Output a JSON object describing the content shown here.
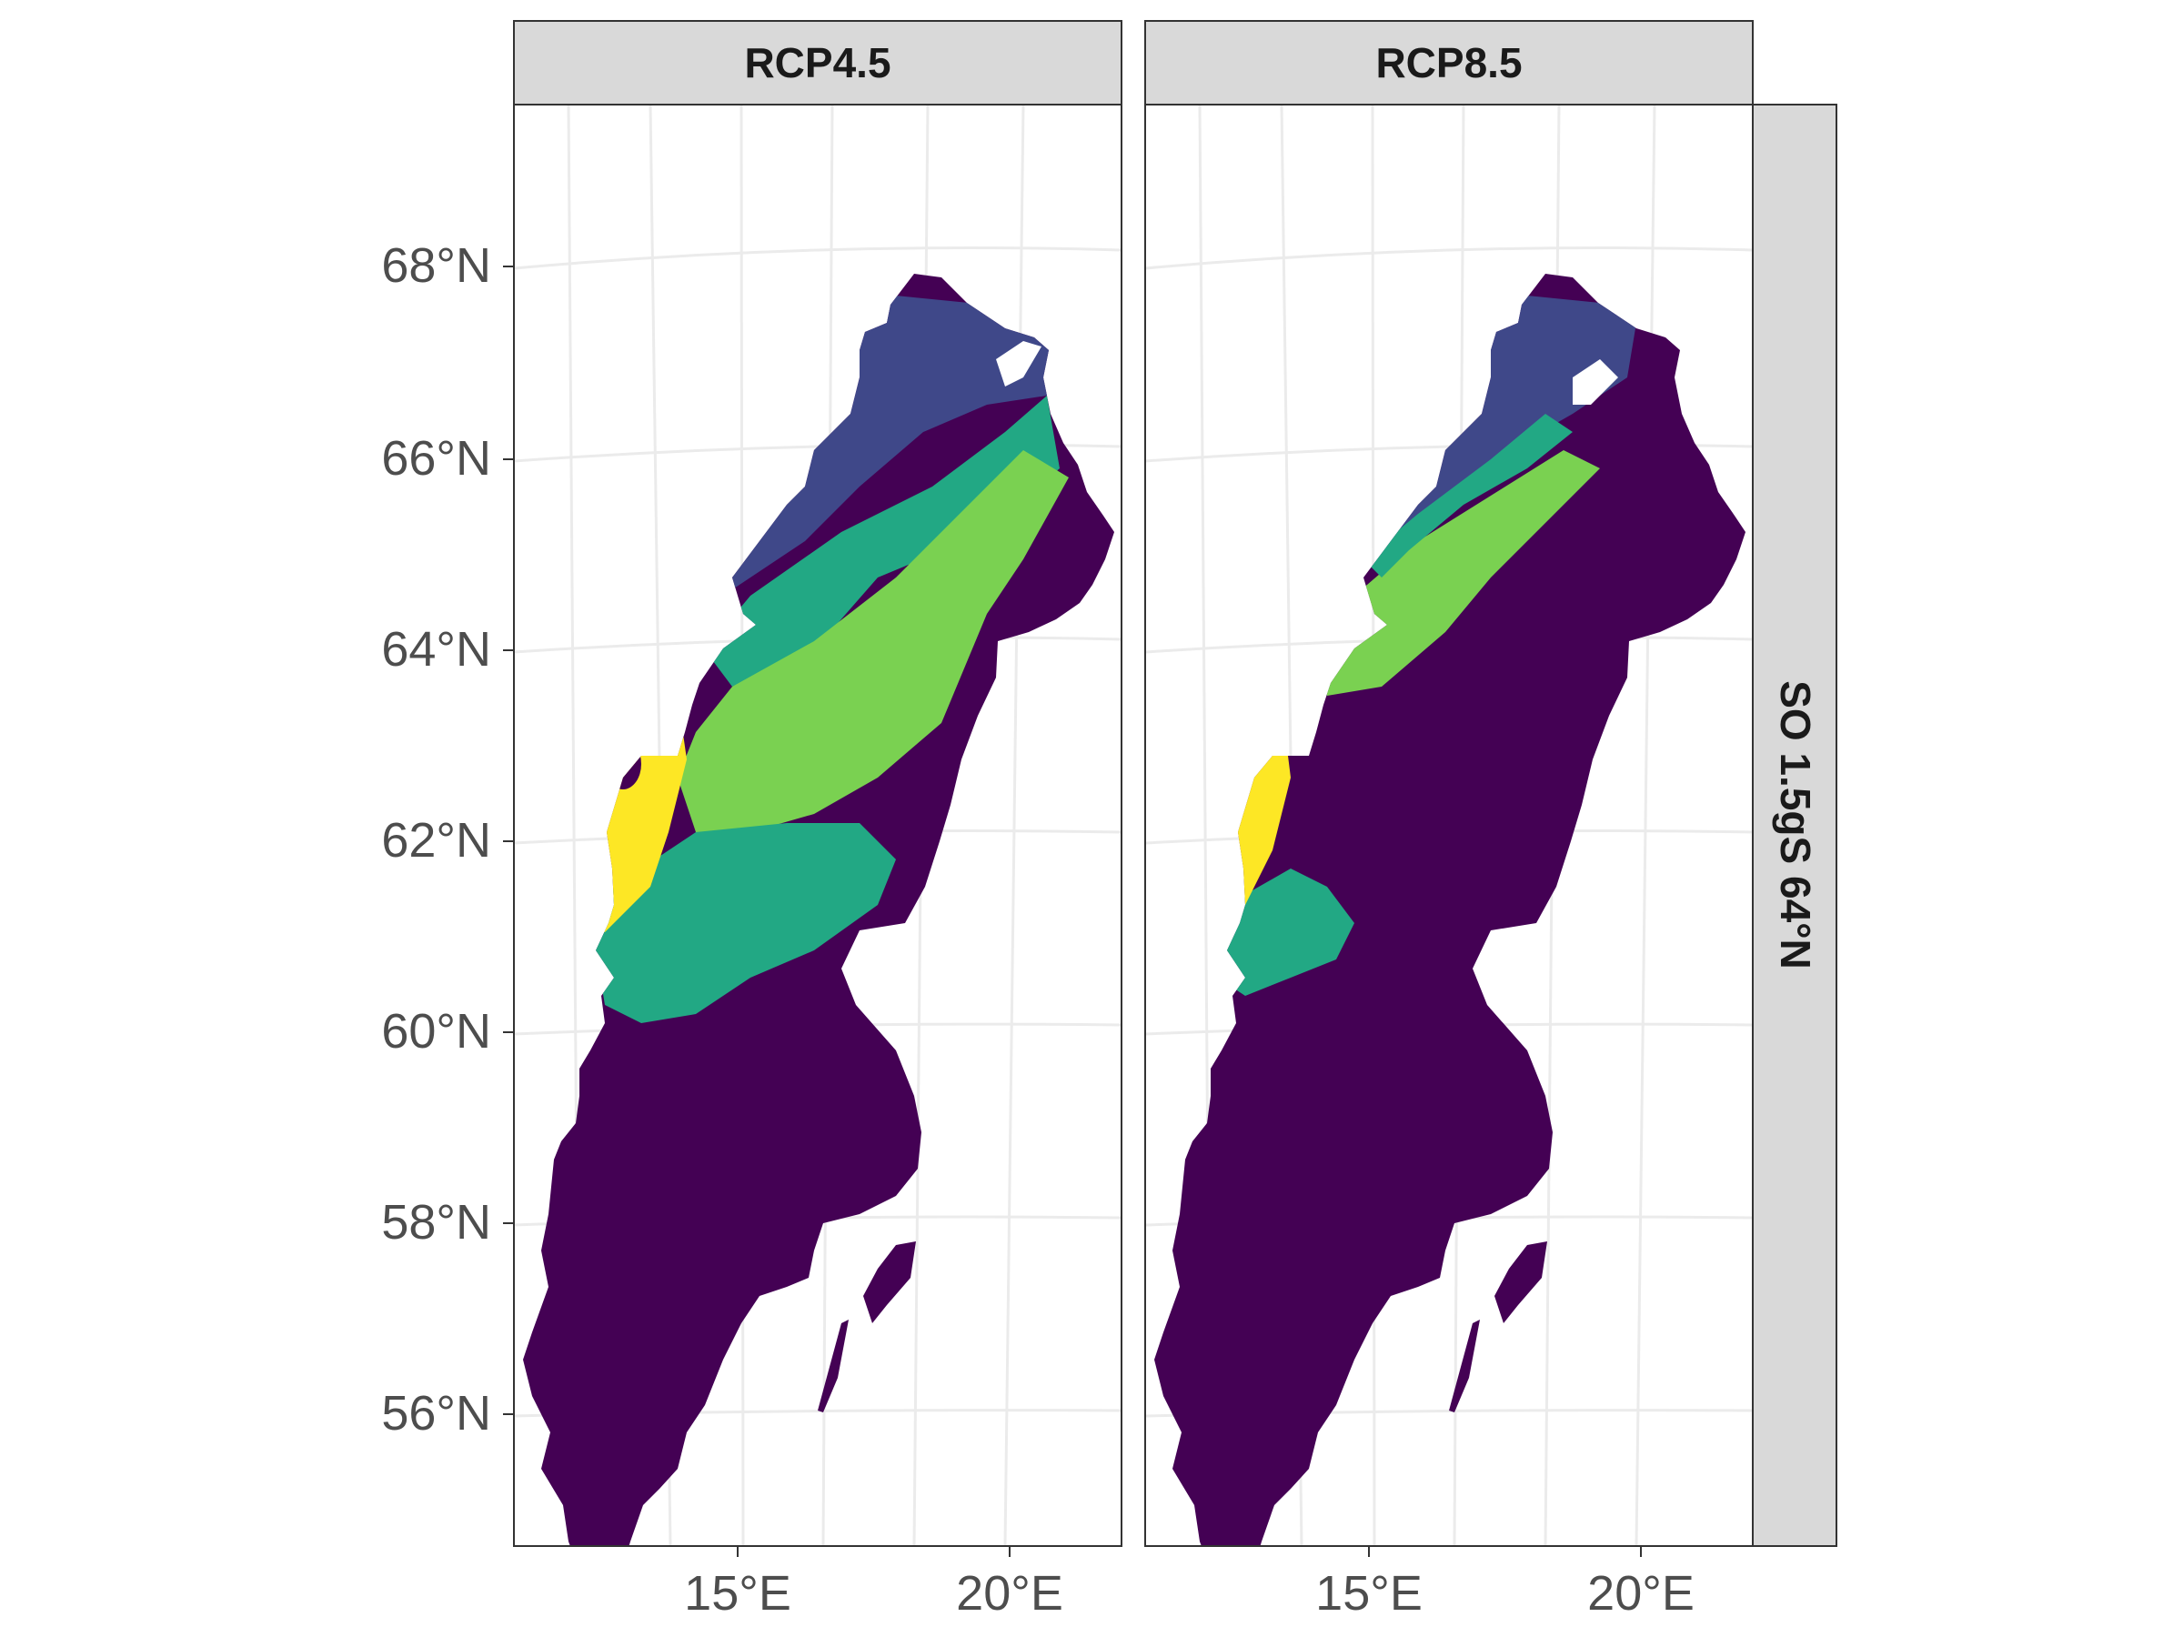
{
  "figure": {
    "panels": [
      {
        "id": "rcp45",
        "label": "RCP4.5"
      },
      {
        "id": "rcp85",
        "label": "RCP8.5"
      }
    ],
    "row_strip_label": "SO 1.5gS 64°N",
    "y_axis_ticks": [
      "68°N",
      "66°N",
      "64°N",
      "62°N",
      "60°N",
      "58°N",
      "56°N"
    ],
    "x_axis_ticks": [
      "15°E",
      "20°E"
    ],
    "map_region": "Sweden",
    "colors": {
      "dark_purple": "#440154",
      "blue": "#3f4889",
      "teal": "#22a884",
      "green": "#7ad151",
      "yellow": "#fde725",
      "panel_border": "#333333",
      "strip_fill": "#d9d9d9",
      "grid": "#ebebeb"
    }
  }
}
